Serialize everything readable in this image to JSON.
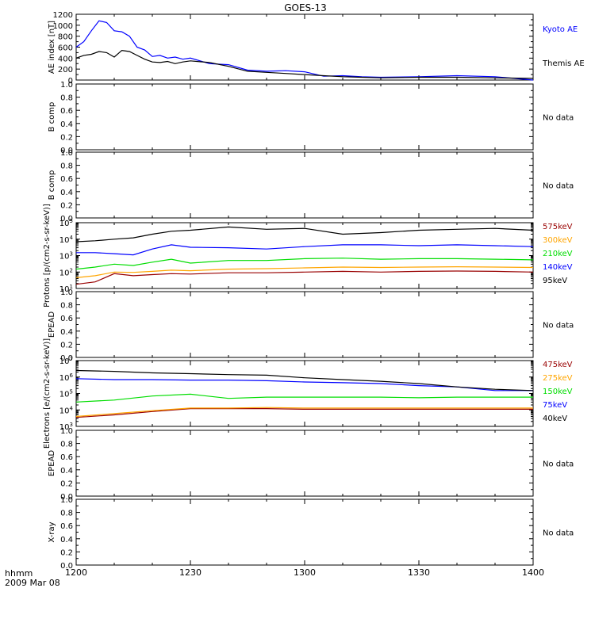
{
  "title": "GOES-13",
  "footer": {
    "time_label": "hhmm",
    "date_label": "2009 Mar 08"
  },
  "x_ticks": [
    "1200",
    "1230",
    "1300",
    "1330",
    "1400"
  ],
  "colors": {
    "black": "#000000",
    "blue": "#0000ff",
    "green": "#00dd00",
    "orange": "#ffa500",
    "darkred": "#990000"
  },
  "chart_data": [
    {
      "type": "line",
      "ylabel": "AE index [nT]",
      "ylim": [
        0,
        1200
      ],
      "yticks": [
        "0",
        "200",
        "400",
        "600",
        "800",
        "1000",
        "1200"
      ],
      "x_minutes": [
        0,
        2,
        4,
        6,
        8,
        10,
        12,
        14,
        16,
        18,
        20,
        22,
        24,
        26,
        28,
        30,
        35,
        40,
        45,
        50,
        55,
        60,
        65,
        70,
        75,
        80,
        90,
        100,
        110,
        120
      ],
      "series": [
        {
          "name": "Kyoto AE",
          "color": "blue",
          "values": [
            600,
            700,
            900,
            1080,
            1050,
            900,
            880,
            800,
            600,
            550,
            430,
            450,
            400,
            420,
            380,
            400,
            300,
            280,
            180,
            160,
            170,
            150,
            70,
            80,
            60,
            50,
            60,
            80,
            60,
            0
          ]
        },
        {
          "name": "Themis AE",
          "color": "black",
          "values": [
            400,
            450,
            470,
            520,
            500,
            420,
            540,
            520,
            450,
            380,
            330,
            320,
            340,
            300,
            330,
            350,
            320,
            250,
            160,
            140,
            120,
            100,
            80,
            60,
            50,
            40,
            50,
            50,
            40,
            30
          ]
        }
      ],
      "legend": [
        "Kyoto AE",
        "Themis AE"
      ],
      "right_note": ""
    },
    {
      "type": "line",
      "ylabel": "B comp",
      "ylim": [
        0,
        1.0
      ],
      "yticks": [
        "0.0",
        "0.2",
        "0.4",
        "0.6",
        "0.8",
        "1.0"
      ],
      "series": [],
      "legend": [],
      "right_note": "No data"
    },
    {
      "type": "line",
      "ylabel": "B comp",
      "ylim": [
        0,
        1.0
      ],
      "yticks": [
        "0.0",
        "0.2",
        "0.4",
        "0.6",
        "0.8",
        "1.0"
      ],
      "series": [],
      "legend": [],
      "right_note": "No data"
    },
    {
      "type": "line",
      "ylabel": "Protons [p/(cm2-s-sr-keV)]",
      "log_scale": true,
      "ylim": [
        10,
        100000
      ],
      "yticks": [
        "10^1",
        "10^2",
        "10^3",
        "10^4",
        "10^5"
      ],
      "x_minutes": [
        0,
        5,
        10,
        15,
        20,
        25,
        30,
        40,
        50,
        60,
        70,
        80,
        90,
        100,
        110,
        120
      ],
      "series": [
        {
          "name": "575keV",
          "color": "darkred",
          "values": [
            18,
            25,
            80,
            60,
            70,
            80,
            75,
            90,
            90,
            100,
            110,
            100,
            110,
            115,
            110,
            100
          ]
        },
        {
          "name": "300keV",
          "color": "orange",
          "values": [
            45,
            60,
            100,
            95,
            110,
            130,
            120,
            150,
            160,
            180,
            200,
            190,
            200,
            210,
            200,
            190
          ]
        },
        {
          "name": "210keV",
          "color": "green",
          "values": [
            150,
            200,
            300,
            250,
            400,
            600,
            350,
            500,
            500,
            650,
            700,
            600,
            650,
            650,
            600,
            550
          ]
        },
        {
          "name": "140keV",
          "color": "blue",
          "values": [
            1500,
            1500,
            1300,
            1100,
            2500,
            4500,
            3200,
            3000,
            2500,
            3500,
            4500,
            4500,
            4000,
            4500,
            4000,
            3500
          ]
        },
        {
          "name": "95keV",
          "color": "black",
          "values": [
            7000,
            8000,
            10000,
            12000,
            20000,
            30000,
            35000,
            55000,
            40000,
            45000,
            20000,
            25000,
            35000,
            40000,
            45000,
            35000
          ]
        }
      ],
      "legend": [
        "575keV",
        "300keV",
        "210keV",
        "140keV",
        "95keV"
      ],
      "right_note": ""
    },
    {
      "type": "line",
      "ylabel": "EPEAD",
      "ylim": [
        0,
        1.0
      ],
      "yticks": [
        "0.0",
        "0.2",
        "0.4",
        "0.6",
        "0.8",
        "1.0"
      ],
      "series": [],
      "legend": [],
      "right_note": "No data"
    },
    {
      "type": "line",
      "ylabel": "Electrons [e/(cm2-s-sr-keV)]",
      "log_scale": true,
      "ylim": [
        1000,
        10000000
      ],
      "yticks": [
        "10^3",
        "10^4",
        "10^5",
        "10^6",
        "10^7"
      ],
      "x_minutes": [
        0,
        10,
        20,
        30,
        40,
        50,
        60,
        70,
        80,
        90,
        100,
        110,
        120
      ],
      "series": [
        {
          "name": "475keV",
          "color": "darkred",
          "values": [
            3500,
            5000,
            8000,
            12000,
            12000,
            12000,
            11000,
            11000,
            11000,
            11000,
            11000,
            11000,
            11000
          ]
        },
        {
          "name": "275keV",
          "color": "orange",
          "values": [
            4000,
            6000,
            9000,
            13000,
            13000,
            14000,
            13000,
            13000,
            13000,
            13000,
            13000,
            13000,
            13000
          ]
        },
        {
          "name": "150keV",
          "color": "green",
          "values": [
            30000,
            40000,
            70000,
            90000,
            50000,
            60000,
            60000,
            60000,
            60000,
            55000,
            60000,
            60000,
            60000
          ]
        },
        {
          "name": "75keV",
          "color": "blue",
          "values": [
            800000,
            700000,
            700000,
            650000,
            650000,
            600000,
            500000,
            450000,
            400000,
            300000,
            250000,
            150000,
            150000
          ]
        },
        {
          "name": "40keV",
          "color": "black",
          "values": [
            2500000,
            2200000,
            1800000,
            1600000,
            1400000,
            1300000,
            900000,
            700000,
            550000,
            400000,
            250000,
            180000,
            150000
          ]
        }
      ],
      "legend": [
        "475keV",
        "275keV",
        "150keV",
        "75keV",
        "40keV"
      ],
      "right_note": ""
    },
    {
      "type": "line",
      "ylabel": "EPEAD",
      "ylim": [
        0,
        1.0
      ],
      "yticks": [
        "0.0",
        "0.2",
        "0.4",
        "0.6",
        "0.8",
        "1.0"
      ],
      "series": [],
      "legend": [],
      "right_note": "No data"
    },
    {
      "type": "line",
      "ylabel": "X-ray",
      "ylim": [
        0,
        1.0
      ],
      "yticks": [
        "0.0",
        "0.2",
        "0.4",
        "0.6",
        "0.8",
        "1.0"
      ],
      "series": [],
      "legend": [],
      "right_note": "No data"
    }
  ]
}
